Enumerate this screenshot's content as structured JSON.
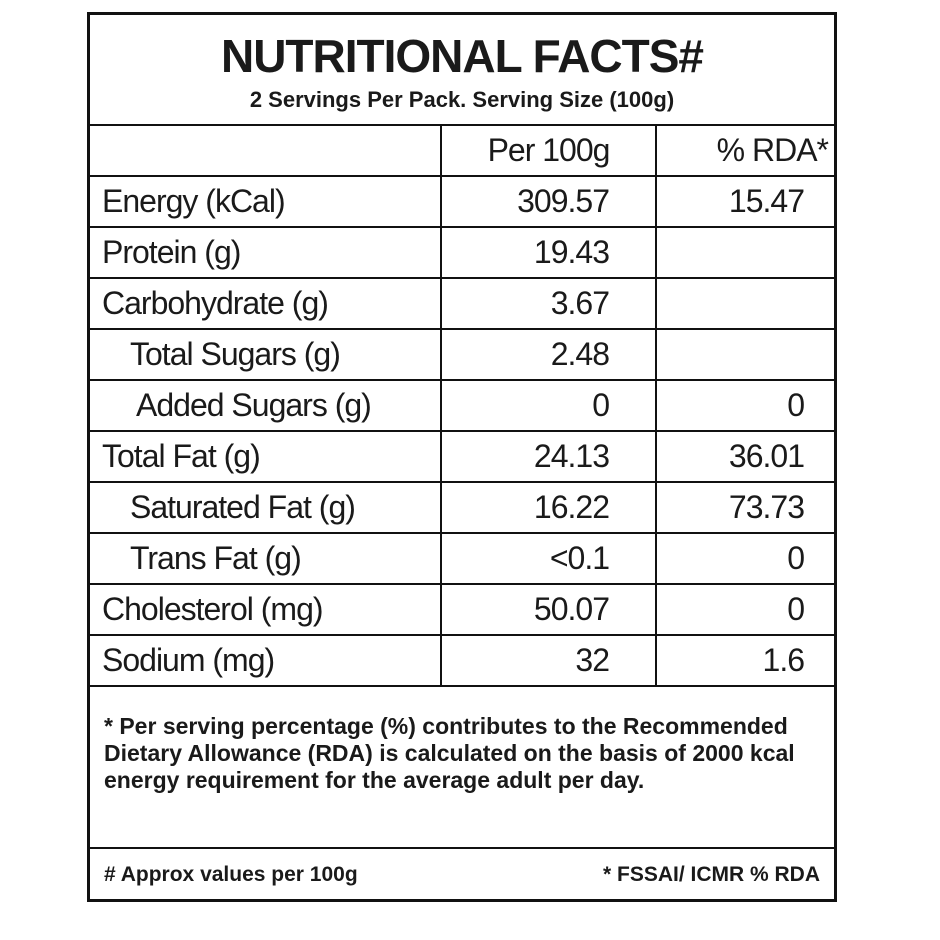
{
  "header": {
    "title": "NUTRITIONAL FACTS#",
    "subtitle": "2 Servings Per Pack. Serving Size (100g)"
  },
  "table": {
    "columns": [
      "Per 100g",
      "% RDA*"
    ],
    "rows": [
      {
        "label": "Energy (kCal)",
        "per_100g": "309.57",
        "rda": "15.47"
      },
      {
        "label": "Protein (g)",
        "per_100g": "19.43"
      },
      {
        "label": "Carbohydrate (g)",
        "per_100g": "3.67"
      },
      {
        "label": "Total Sugars (g)",
        "per_100g": "2.48"
      },
      {
        "label": "Added Sugars (g)",
        "per_100g": "0",
        "rda": "0"
      },
      {
        "label": "Total Fat (g)",
        "per_100g": "24.13",
        "rda": "36.01"
      },
      {
        "label": "Saturated Fat (g)",
        "per_100g": "16.22",
        "rda": "73.73"
      },
      {
        "label": "Trans Fat (g)",
        "per_100g": "<0.1",
        "rda": "0"
      },
      {
        "label": "Cholesterol (mg)",
        "per_100g": "50.07",
        "rda": "0"
      },
      {
        "label": "Sodium (mg)",
        "per_100g": "32",
        "rda": "1.6"
      }
    ]
  },
  "footnote": "* Per serving percentage (%) contributes to the Recommended Dietary Allowance (RDA) is calculated on the basis of 2000 kcal energy requirement for the average adult per day.",
  "footer": {
    "left": "# Approx values per 100g",
    "right": "* FSSAI/ ICMR % RDA"
  }
}
